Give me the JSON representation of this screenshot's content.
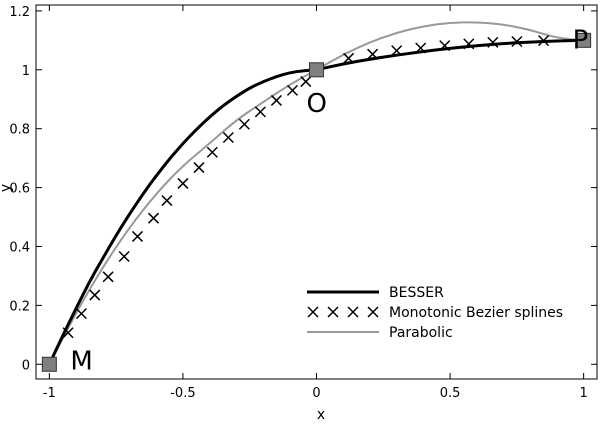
{
  "chart_data": {
    "type": "line",
    "title": "",
    "xlabel": "x",
    "ylabel": "y",
    "xlim": [
      -1.05,
      1.05
    ],
    "ylim": [
      -0.05,
      1.22
    ],
    "xticks": [
      -1,
      -0.5,
      0,
      0.5,
      1
    ],
    "xtick_labels": [
      "-1",
      "-0.5",
      "0",
      "0.5",
      "1"
    ],
    "yticks": [
      0,
      0.2,
      0.4,
      0.6,
      0.8,
      1,
      1.2
    ],
    "ytick_labels": [
      "0",
      "0.2",
      "0.4",
      "0.6",
      "0.8",
      "1",
      "1.2"
    ],
    "grid": false,
    "legend_position": "lower-right",
    "control_points": [
      {
        "label": "M",
        "x": -1,
        "y": 0
      },
      {
        "label": "O",
        "x": 0,
        "y": 1
      },
      {
        "label": "P",
        "x": 1,
        "y": 1.1
      }
    ],
    "series": [
      {
        "name": "BESSER",
        "style": "line",
        "color": "#000000",
        "x": [
          -1,
          -0.95,
          -0.9,
          -0.85,
          -0.8,
          -0.75,
          -0.7,
          -0.65,
          -0.6,
          -0.55,
          -0.5,
          -0.45,
          -0.4,
          -0.35,
          -0.3,
          -0.25,
          -0.2,
          -0.15,
          -0.1,
          -0.05,
          0,
          0.1,
          0.2,
          0.3,
          0.4,
          0.5,
          0.6,
          0.7,
          0.8,
          0.9,
          1
        ],
        "y": [
          0,
          0.097,
          0.19,
          0.28,
          0.36,
          0.438,
          0.51,
          0.578,
          0.64,
          0.698,
          0.75,
          0.797,
          0.84,
          0.878,
          0.91,
          0.938,
          0.96,
          0.977,
          0.99,
          0.997,
          1,
          1.02,
          1.036,
          1.05,
          1.062,
          1.073,
          1.082,
          1.089,
          1.094,
          1.098,
          1.1
        ]
      },
      {
        "name": "Monotonic Bezier splines",
        "style": "markers",
        "marker": "x",
        "color": "#000000",
        "x": [
          -0.93,
          -0.88,
          -0.83,
          -0.78,
          -0.72,
          -0.67,
          -0.61,
          -0.56,
          -0.5,
          -0.44,
          -0.39,
          -0.33,
          -0.27,
          -0.21,
          -0.15,
          -0.09,
          -0.04,
          0.12,
          0.21,
          0.3,
          0.39,
          0.48,
          0.57,
          0.66,
          0.75,
          0.85
        ],
        "y": [
          0.107,
          0.172,
          0.235,
          0.297,
          0.366,
          0.434,
          0.496,
          0.556,
          0.614,
          0.668,
          0.72,
          0.77,
          0.815,
          0.857,
          0.896,
          0.93,
          0.96,
          1.039,
          1.053,
          1.065,
          1.074,
          1.082,
          1.088,
          1.093,
          1.096,
          1.099
        ]
      },
      {
        "name": "Parabolic",
        "style": "line",
        "color": "#999999",
        "x": [
          -1,
          -0.9,
          -0.8,
          -0.7,
          -0.6,
          -0.5,
          -0.4,
          -0.3,
          -0.2,
          -0.1,
          0,
          0.1,
          0.2,
          0.3,
          0.4,
          0.5,
          0.6,
          0.7,
          0.8,
          0.9,
          1
        ],
        "y": [
          0,
          0.175,
          0.33,
          0.465,
          0.58,
          0.675,
          0.75,
          0.83,
          0.89,
          0.95,
          1,
          1.052,
          1.094,
          1.126,
          1.148,
          1.16,
          1.162,
          1.154,
          1.136,
          1.108,
          1.1
        ]
      }
    ]
  }
}
